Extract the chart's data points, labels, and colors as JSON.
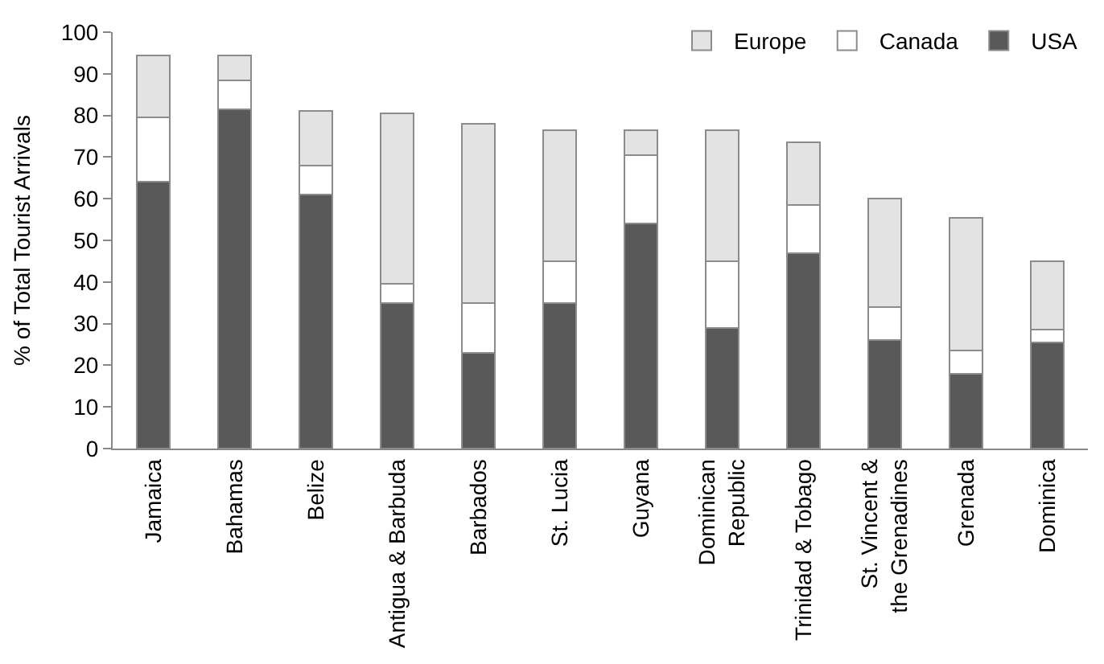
{
  "chart_data": {
    "type": "bar",
    "stacked": true,
    "ylabel": "% of Total Tourist Arrivals",
    "categories": [
      "Jamaica",
      "Bahamas",
      "Belize",
      "Antigua & Barbuda",
      "Barbados",
      "St. Lucia",
      "Guyana",
      "Dominican Republic",
      "Trinidad & Tobago",
      "St. Vincent & the Grenadines",
      "Grenada",
      "Dominica"
    ],
    "series": [
      {
        "name": "USA",
        "color": "#595959",
        "values": [
          64,
          81.5,
          61,
          35,
          23,
          35,
          54,
          29,
          47,
          26,
          18,
          25.5
        ]
      },
      {
        "name": "Canada",
        "color": "#ffffff",
        "values": [
          15.5,
          7,
          7,
          4.5,
          12,
          10,
          16.5,
          16,
          11.5,
          8,
          5.5,
          3
        ]
      },
      {
        "name": "Europe",
        "color": "#e3e3e3",
        "values": [
          15,
          6,
          13,
          41,
          43,
          31.5,
          6,
          31.5,
          15,
          26,
          32,
          16.5
        ]
      }
    ],
    "ylim": [
      0,
      100
    ],
    "yticks": [
      0,
      10,
      20,
      30,
      40,
      50,
      60,
      70,
      80,
      90,
      100
    ],
    "legend": "top right"
  }
}
